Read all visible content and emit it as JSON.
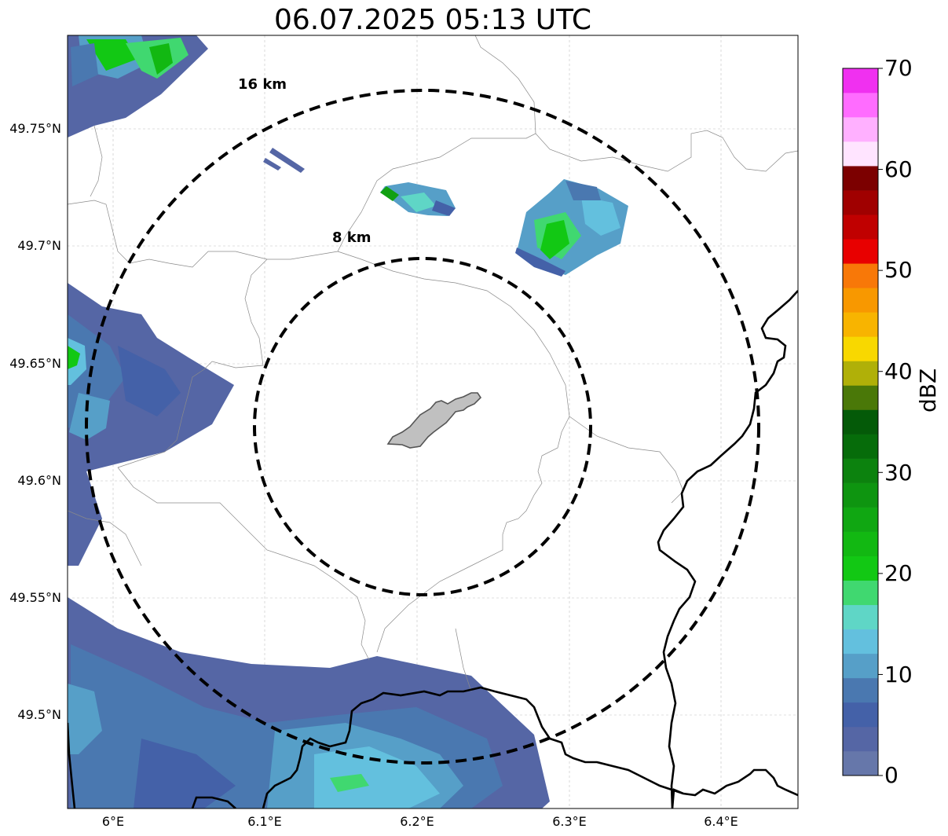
{
  "title": "06.07.2025 05:13 UTC",
  "latitude_ticks": [
    "49.75°N",
    "49.7°N",
    "49.65°N",
    "49.6°N",
    "49.55°N",
    "49.5°N"
  ],
  "longitude_ticks": [
    "6°E",
    "6.1°E",
    "6.2°E",
    "6.3°E",
    "6.4°E"
  ],
  "range_rings": [
    {
      "label": "8 km",
      "radius_km": 8
    },
    {
      "label": "16 km",
      "radius_km": 16
    }
  ],
  "colorbar": {
    "label": "dBZ",
    "min": 0,
    "max": 70,
    "ticks": [
      "0",
      "10",
      "20",
      "30",
      "40",
      "50",
      "60",
      "70"
    ],
    "colors": [
      "#6677aa",
      "#5566a5",
      "#4461a8",
      "#4a78b0",
      "#569fc8",
      "#63c0de",
      "#5fd6c6",
      "#40d870",
      "#12c814",
      "#12b812",
      "#10a712",
      "#0e9510",
      "#0c820e",
      "#066c0a",
      "#045a08",
      "#4a7808",
      "#b0b008",
      "#f8d800",
      "#f8b400",
      "#f89800",
      "#f87808",
      "#e80000",
      "#c00000",
      "#a00000",
      "#7c0000",
      "#ffe4ff",
      "#ffb0ff",
      "#ff6cff",
      "#f030f0"
    ]
  },
  "map": {
    "lon_range": [
      5.97,
      6.45
    ],
    "lat_range": [
      49.46,
      49.79
    ],
    "radar_center": {
      "lon": 6.2,
      "lat": 49.623
    },
    "gridlines": true
  }
}
